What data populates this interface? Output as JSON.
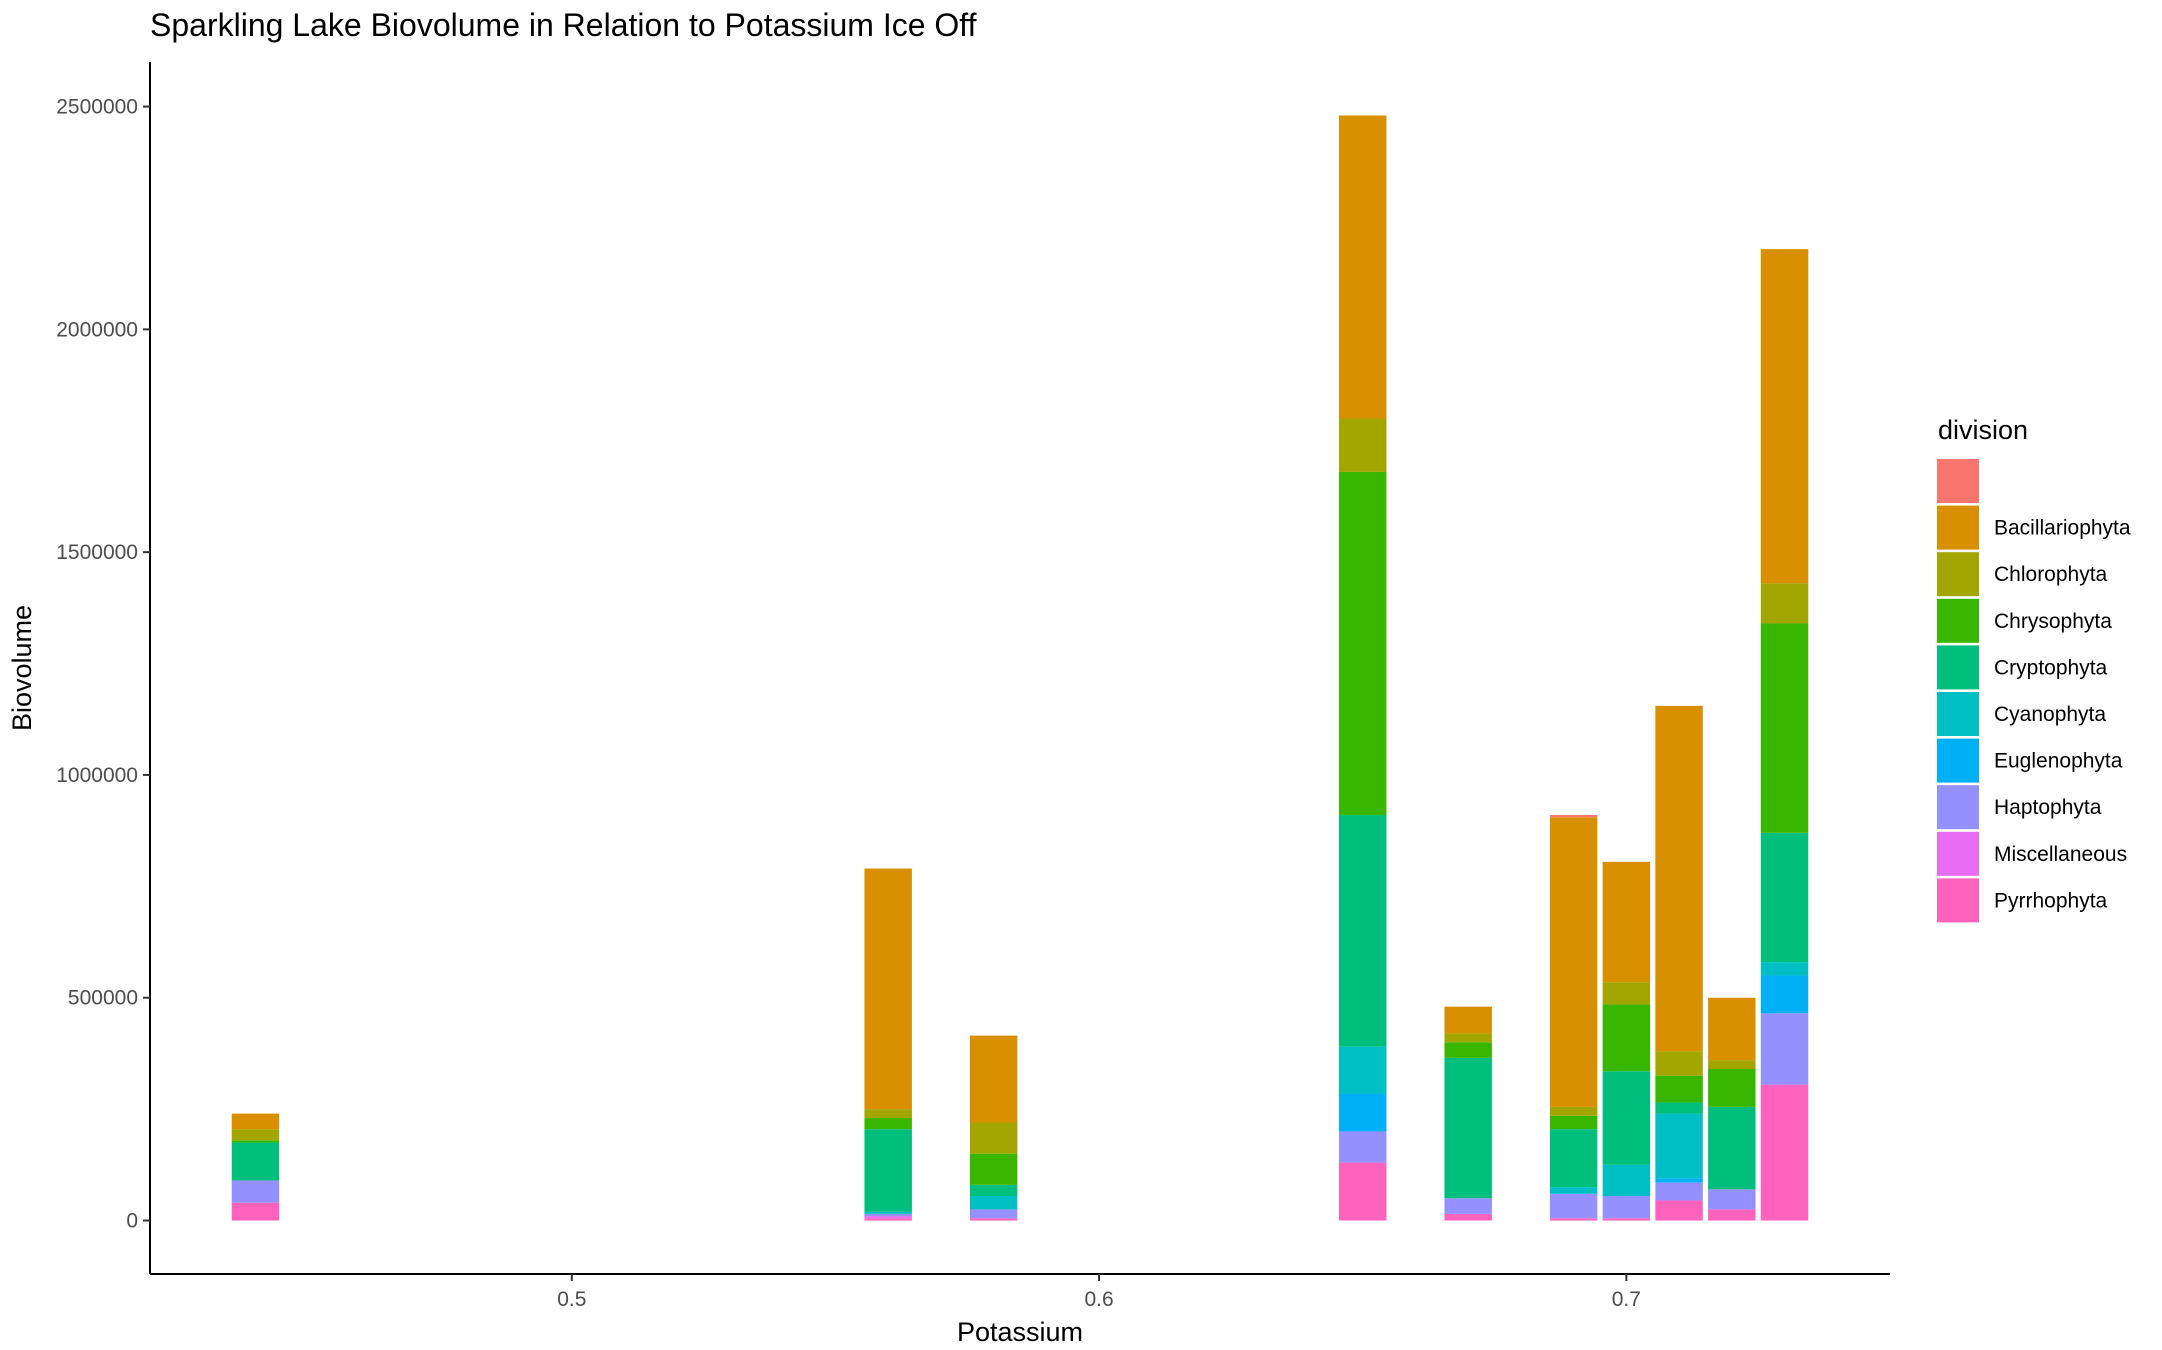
{
  "chart_data": {
    "type": "bar",
    "stacked": true,
    "title": "Sparkling Lake Biovolume in Relation to Potassium Ice Off",
    "xlabel": "Potassium",
    "ylabel": "Biovolume",
    "xlim": [
      0.42,
      0.75
    ],
    "ylim": [
      -120000,
      2600000
    ],
    "bar_width": 0.009,
    "x_ticks": [
      {
        "value": 0.5,
        "label": "0.5"
      },
      {
        "value": 0.6,
        "label": "0.6"
      },
      {
        "value": 0.7,
        "label": "0.7"
      }
    ],
    "y_ticks": [
      {
        "value": 0,
        "label": "0"
      },
      {
        "value": 500000,
        "label": "500000"
      },
      {
        "value": 1000000,
        "label": "1000000"
      },
      {
        "value": 1500000,
        "label": "1500000"
      },
      {
        "value": 2000000,
        "label": "2000000"
      },
      {
        "value": 2500000,
        "label": "2500000"
      }
    ],
    "grid": false,
    "legend": {
      "title": "division",
      "placement": "right",
      "entries": [
        {
          "key": "blank",
          "label": "",
          "color": "#F8766D"
        },
        {
          "key": "Bacillariophyta",
          "label": "Bacillariophyta",
          "color": "#D89000"
        },
        {
          "key": "Chlorophyta",
          "label": "Chlorophyta",
          "color": "#A3A500"
        },
        {
          "key": "Chrysophyta",
          "label": "Chrysophyta",
          "color": "#39B600"
        },
        {
          "key": "Cryptophyta",
          "label": "Cryptophyta",
          "color": "#00BF7D"
        },
        {
          "key": "Cyanophyta",
          "label": "Cyanophyta",
          "color": "#00BFC4"
        },
        {
          "key": "Euglenophyta",
          "label": "Euglenophyta",
          "color": "#00B0F6"
        },
        {
          "key": "Haptophyta",
          "label": "Haptophyta",
          "color": "#9590FF"
        },
        {
          "key": "Miscellaneous",
          "label": "Miscellaneous",
          "color": "#E76BF3"
        },
        {
          "key": "Pyrrhophyta",
          "label": "Pyrrhophyta",
          "color": "#FF62BC"
        }
      ]
    },
    "bars": [
      {
        "x": 0.44,
        "segments": [
          {
            "division": "Pyrrhophyta",
            "value": 40000
          },
          {
            "division": "Haptophyta",
            "value": 50000
          },
          {
            "division": "Cryptophyta",
            "value": 85000
          },
          {
            "division": "Chrysophyta",
            "value": 5000
          },
          {
            "division": "Chlorophyta",
            "value": 25000
          },
          {
            "division": "Bacillariophyta",
            "value": 35000
          }
        ]
      },
      {
        "x": 0.56,
        "segments": [
          {
            "division": "Pyrrhophyta",
            "value": 5000
          },
          {
            "division": "Miscellaneous",
            "value": 5000
          },
          {
            "division": "Haptophyta",
            "value": 5000
          },
          {
            "division": "Cyanophyta",
            "value": 5000
          },
          {
            "division": "Cryptophyta",
            "value": 185000
          },
          {
            "division": "Chrysophyta",
            "value": 25000
          },
          {
            "division": "Chlorophyta",
            "value": 20000
          },
          {
            "division": "Bacillariophyta",
            "value": 540000
          }
        ]
      },
      {
        "x": 0.58,
        "segments": [
          {
            "division": "Pyrrhophyta",
            "value": 5000
          },
          {
            "division": "Haptophyta",
            "value": 20000
          },
          {
            "division": "Cyanophyta",
            "value": 30000
          },
          {
            "division": "Cryptophyta",
            "value": 25000
          },
          {
            "division": "Chrysophyta",
            "value": 70000
          },
          {
            "division": "Chlorophyta",
            "value": 70000
          },
          {
            "division": "Bacillariophyta",
            "value": 195000
          }
        ]
      },
      {
        "x": 0.65,
        "segments": [
          {
            "division": "Pyrrhophyta",
            "value": 130000
          },
          {
            "division": "Haptophyta",
            "value": 70000
          },
          {
            "division": "Euglenophyta",
            "value": 85000
          },
          {
            "division": "Cyanophyta",
            "value": 105000
          },
          {
            "division": "Cryptophyta",
            "value": 520000
          },
          {
            "division": "Chrysophyta",
            "value": 770000
          },
          {
            "division": "Chlorophyta",
            "value": 120000
          },
          {
            "division": "Bacillariophyta",
            "value": 680000
          }
        ]
      },
      {
        "x": 0.67,
        "segments": [
          {
            "division": "Pyrrhophyta",
            "value": 15000
          },
          {
            "division": "Haptophyta",
            "value": 35000
          },
          {
            "division": "Cryptophyta",
            "value": 315000
          },
          {
            "division": "Chrysophyta",
            "value": 35000
          },
          {
            "division": "Chlorophyta",
            "value": 20000
          },
          {
            "division": "Bacillariophyta",
            "value": 60000
          }
        ]
      },
      {
        "x": 0.69,
        "segments": [
          {
            "division": "Pyrrhophyta",
            "value": 5000
          },
          {
            "division": "Haptophyta",
            "value": 55000
          },
          {
            "division": "Cyanophyta",
            "value": 15000
          },
          {
            "division": "Cryptophyta",
            "value": 130000
          },
          {
            "division": "Chrysophyta",
            "value": 30000
          },
          {
            "division": "Chlorophyta",
            "value": 20000
          },
          {
            "division": "Bacillariophyta",
            "value": 650000
          },
          {
            "division": "blank",
            "value": 5000
          }
        ]
      },
      {
        "x": 0.7,
        "segments": [
          {
            "division": "Pyrrhophyta",
            "value": 5000
          },
          {
            "division": "Haptophyta",
            "value": 50000
          },
          {
            "division": "Cyanophyta",
            "value": 70000
          },
          {
            "division": "Cryptophyta",
            "value": 210000
          },
          {
            "division": "Chrysophyta",
            "value": 150000
          },
          {
            "division": "Chlorophyta",
            "value": 50000
          },
          {
            "division": "Bacillariophyta",
            "value": 270000
          }
        ]
      },
      {
        "x": 0.71,
        "segments": [
          {
            "division": "Pyrrhophyta",
            "value": 45000
          },
          {
            "division": "Haptophyta",
            "value": 40000
          },
          {
            "division": "Euglenophyta",
            "value": 10000
          },
          {
            "division": "Cyanophyta",
            "value": 145000
          },
          {
            "division": "Cryptophyta",
            "value": 25000
          },
          {
            "division": "Chrysophyta",
            "value": 60000
          },
          {
            "division": "Chlorophyta",
            "value": 55000
          },
          {
            "division": "Bacillariophyta",
            "value": 775000
          }
        ]
      },
      {
        "x": 0.72,
        "segments": [
          {
            "division": "Pyrrhophyta",
            "value": 25000
          },
          {
            "division": "Haptophyta",
            "value": 45000
          },
          {
            "division": "Cryptophyta",
            "value": 185000
          },
          {
            "division": "Chrysophyta",
            "value": 85000
          },
          {
            "division": "Chlorophyta",
            "value": 20000
          },
          {
            "division": "Bacillariophyta",
            "value": 140000
          }
        ]
      },
      {
        "x": 0.73,
        "segments": [
          {
            "division": "Pyrrhophyta",
            "value": 305000
          },
          {
            "division": "Haptophyta",
            "value": 160000
          },
          {
            "division": "Euglenophyta",
            "value": 85000
          },
          {
            "division": "Cyanophyta",
            "value": 30000
          },
          {
            "division": "Cryptophyta",
            "value": 290000
          },
          {
            "division": "Chrysophyta",
            "value": 470000
          },
          {
            "division": "Chlorophyta",
            "value": 90000
          },
          {
            "division": "Bacillariophyta",
            "value": 750000
          }
        ]
      }
    ]
  }
}
